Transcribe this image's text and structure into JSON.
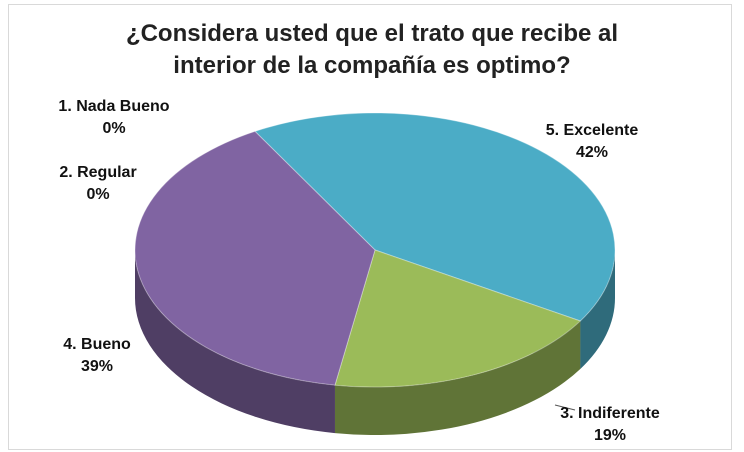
{
  "chart_data": {
    "type": "pie",
    "title_line1": "¿Considera usted que el trato que recibe al",
    "title_line2": "interior de la compañía es optimo?",
    "slices": [
      {
        "label": "1. Nada Bueno",
        "value_text": "0%",
        "value": 0,
        "color": "#4f81bd"
      },
      {
        "label": "2. Regular",
        "value_text": "0%",
        "value": 0,
        "color": "#c0504d"
      },
      {
        "label": "3. Indiferente",
        "value_text": "19%",
        "value": 19,
        "color": "#9bbb59"
      },
      {
        "label": "4. Bueno",
        "value_text": "39%",
        "value": 39,
        "color": "#8064a2"
      },
      {
        "label": "5. Excelente",
        "value_text": "42%",
        "value": 42,
        "color": "#4bacc6"
      }
    ],
    "style": "3d-pie"
  }
}
